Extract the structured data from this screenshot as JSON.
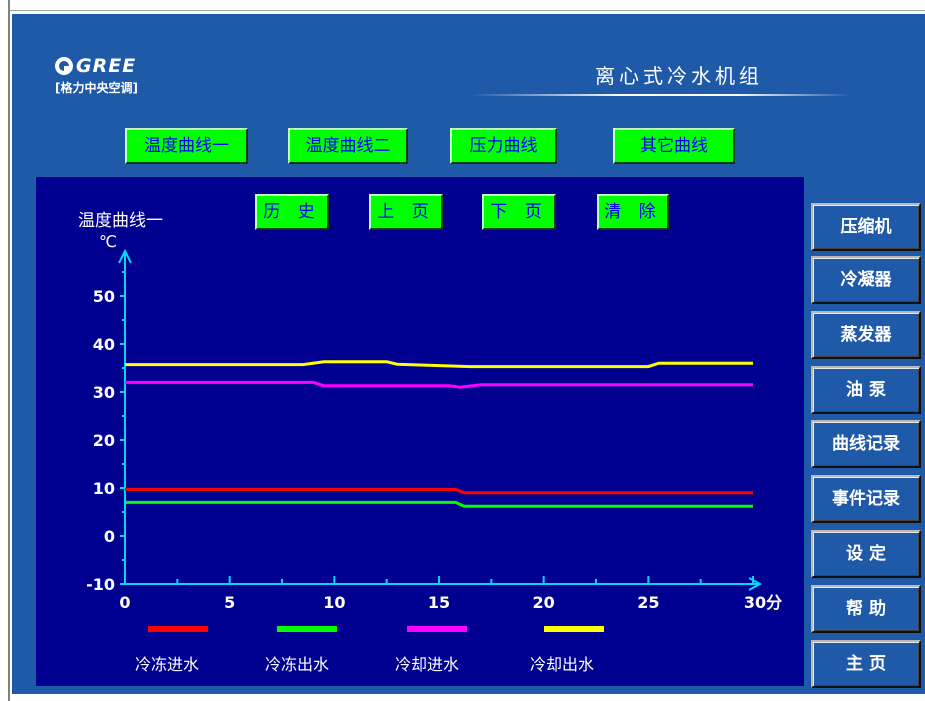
{
  "header": {
    "brand": "GREE",
    "brand_sub": "[格力中央空调]",
    "unit_title": "离心式冷水机组"
  },
  "tabs": [
    {
      "label": "温度曲线一"
    },
    {
      "label": "温度曲线二"
    },
    {
      "label": "压力曲线"
    },
    {
      "label": "其它曲线"
    }
  ],
  "chart_nav": {
    "title": "温度曲线一",
    "history": "历 史",
    "prev": "上 页",
    "next": "下 页",
    "clear": "清 除"
  },
  "side_menu": [
    {
      "label": "压缩机"
    },
    {
      "label": "冷凝器"
    },
    {
      "label": "蒸发器"
    },
    {
      "label": "油 泵"
    },
    {
      "label": "曲线记录"
    },
    {
      "label": "事件记录"
    },
    {
      "label": "设 定"
    },
    {
      "label": "帮 助"
    },
    {
      "label": "主 页"
    }
  ],
  "colors": {
    "screen_bg": "#1f5aa9",
    "plot_bg": "#000090",
    "axis": "#00d8ff",
    "button_green": "#00ff00",
    "button_text": "#0000ff"
  },
  "chart_data": {
    "type": "line",
    "ylabel": "℃",
    "xlabel": "分",
    "xlim": [
      0,
      30
    ],
    "ylim": [
      -10,
      60
    ],
    "x_ticks": [
      0,
      5,
      10,
      15,
      20,
      25,
      30
    ],
    "x_tick_labels": [
      "0",
      "5",
      "10",
      "15",
      "20",
      "25",
      "30分"
    ],
    "y_ticks": [
      -10,
      0,
      10,
      20,
      30,
      40,
      50
    ],
    "y_tick_labels": [
      "-10",
      "0",
      "10",
      "20",
      "30",
      "40",
      "50"
    ],
    "series": [
      {
        "name": "冷冻进水",
        "color": "#ff0000",
        "x": [
          0,
          15.8,
          16.2,
          30
        ],
        "y": [
          9.7,
          9.7,
          9.0,
          9.0
        ]
      },
      {
        "name": "冷冻出水",
        "color": "#00ff00",
        "x": [
          0,
          15.8,
          16.2,
          30
        ],
        "y": [
          7.0,
          7.0,
          6.2,
          6.2
        ]
      },
      {
        "name": "冷却进水",
        "color": "#ff00ff",
        "x": [
          0,
          9.0,
          9.5,
          15.5,
          16.0,
          17.0,
          30
        ],
        "y": [
          32.0,
          32.0,
          31.3,
          31.3,
          31.0,
          31.5,
          31.5
        ]
      },
      {
        "name": "冷却出水",
        "color": "#ffff00",
        "x": [
          0,
          8.5,
          9.5,
          12.5,
          13.0,
          16.5,
          25.0,
          25.5,
          30
        ],
        "y": [
          35.7,
          35.7,
          36.3,
          36.3,
          35.8,
          35.3,
          35.3,
          36.0,
          36.0
        ]
      }
    ]
  }
}
